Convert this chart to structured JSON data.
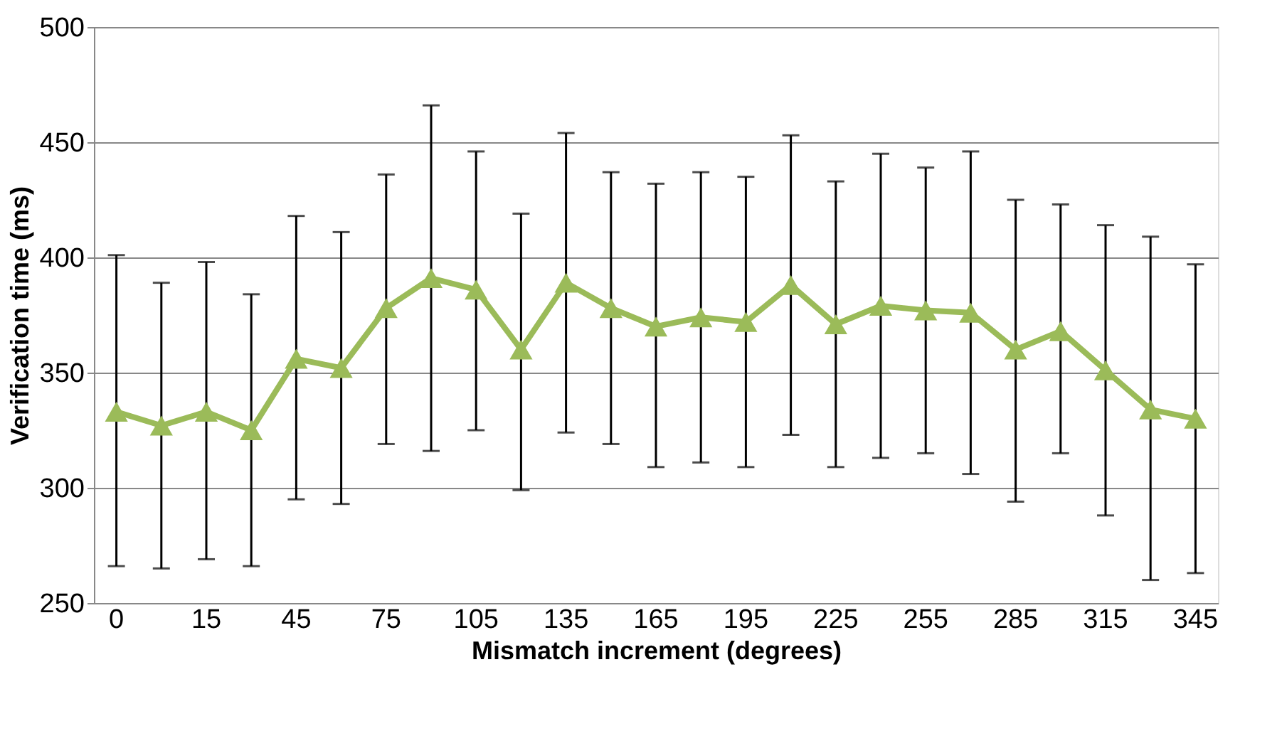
{
  "chart_data": {
    "type": "line",
    "xlabel": "Mismatch increment (degrees)",
    "ylabel": "Verification time (ms)",
    "categories": [
      "0",
      null,
      "15",
      null,
      "45",
      null,
      "75",
      null,
      "105",
      null,
      "135",
      null,
      "165",
      null,
      "195",
      null,
      "225",
      null,
      "255",
      null,
      "285",
      null,
      "315",
      null,
      "345"
    ],
    "series": [
      {
        "color": "#9bbb59",
        "values": [
          333,
          327,
          333,
          325,
          356,
          352,
          378,
          391,
          386,
          360,
          389,
          378,
          370,
          374,
          372,
          388,
          371,
          379,
          377,
          376,
          360,
          368,
          351,
          334,
          330
        ],
        "errors": [
          [
            266,
            401
          ],
          [
            265,
            389
          ],
          [
            269,
            398
          ],
          [
            266,
            384
          ],
          [
            295,
            418
          ],
          [
            293,
            411
          ],
          [
            319,
            436
          ],
          [
            316,
            466
          ],
          [
            325,
            446
          ],
          [
            299,
            419
          ],
          [
            324,
            454
          ],
          [
            319,
            437
          ],
          [
            309,
            432
          ],
          [
            311,
            437
          ],
          [
            309,
            435
          ],
          [
            323,
            453
          ],
          [
            309,
            433
          ],
          [
            313,
            445
          ],
          [
            315,
            439
          ],
          [
            306,
            446
          ],
          [
            294,
            425
          ],
          [
            315,
            423
          ],
          [
            288,
            414
          ],
          [
            260,
            409
          ],
          [
            263,
            397
          ]
        ]
      }
    ],
    "ylim": [
      250,
      500
    ],
    "yticks": [
      250,
      300,
      350,
      400,
      450,
      500
    ],
    "grid": "y",
    "marker": "triangle",
    "line_style": "solid"
  }
}
